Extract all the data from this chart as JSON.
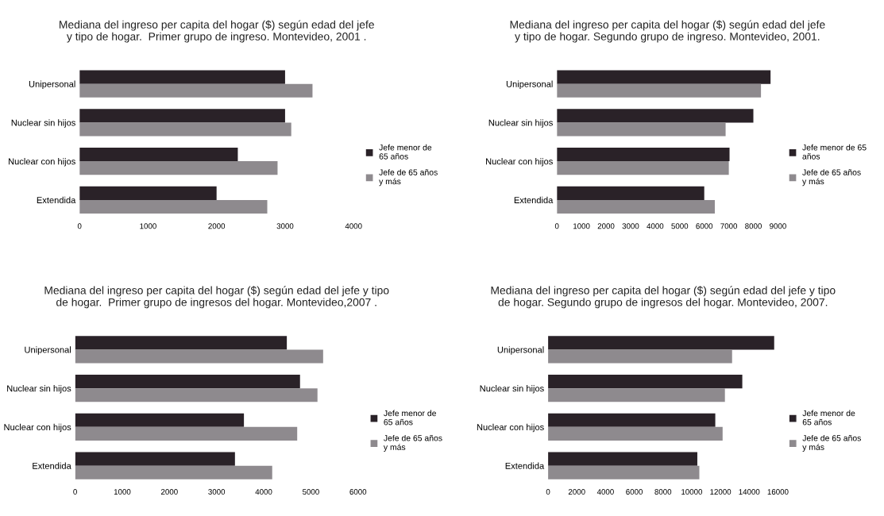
{
  "chart_data": [
    {
      "type": "bar",
      "orientation": "horizontal",
      "title": "Mediana del ingreso per capita del hogar ($) según edad del jefe\ny tipo de hogar.  Primer grupo de ingreso. Montevideo, 2001 .",
      "categories": [
        "Unipersonal",
        "Nuclear sin hijos",
        "Nuclear con hijos",
        "Extendida"
      ],
      "series": [
        {
          "name": "Jefe menor de\n65 años",
          "color": "#2a2228",
          "values": [
            3000,
            3000,
            2310,
            2000
          ]
        },
        {
          "name": "Jefe de 65 años\ny más",
          "color": "#8e8a8e",
          "values": [
            3400,
            3090,
            2890,
            2740
          ]
        }
      ],
      "xlim": [
        0,
        4000
      ],
      "xticks": [
        0,
        1000,
        2000,
        3000,
        4000
      ],
      "legend": "right",
      "grid": false
    },
    {
      "type": "bar",
      "orientation": "horizontal",
      "title": "Mediana del ingreso per capita del hogar ($) según edad del jefe\ny tipo de hogar. Segundo grupo de ingreso. Montevideo, 2001.",
      "categories": [
        "Unipersonal",
        "Nuclear sin hijos",
        "Nuclear con hijos",
        "Extendida"
      ],
      "series": [
        {
          "name": "Jefe menor de 65\naños",
          "color": "#2a2228",
          "values": [
            8700,
            8000,
            7030,
            6000
          ]
        },
        {
          "name": "Jefe de 65 años\ny más",
          "color": "#8e8a8e",
          "values": [
            8310,
            6870,
            7000,
            6430
          ]
        }
      ],
      "xlim": [
        0,
        9000
      ],
      "xticks": [
        0,
        1000,
        2000,
        3000,
        4000,
        5000,
        6000,
        7000,
        8000,
        9000
      ],
      "legend": "right",
      "grid": false
    },
    {
      "type": "bar",
      "orientation": "horizontal",
      "title": "Mediana del ingreso per capita del hogar ($) según edad del jefe y tipo\nde hogar.  Primer grupo de ingresos del hogar. Montevideo,2007 .",
      "categories": [
        "Unipersonal",
        "Nuclear sin hijos",
        "Nuclear con hijos",
        "Extendida"
      ],
      "series": [
        {
          "name": "Jefe menor de\n65 años",
          "color": "#2a2228",
          "values": [
            4490,
            4770,
            3580,
            3390
          ]
        },
        {
          "name": "Jefe de 65 años\ny más",
          "color": "#8e8a8e",
          "values": [
            5260,
            5140,
            4710,
            4180
          ]
        }
      ],
      "xlim": [
        0,
        6000
      ],
      "xticks": [
        0,
        1000,
        2000,
        3000,
        4000,
        5000,
        6000
      ],
      "legend": "right",
      "grid": false
    },
    {
      "type": "bar",
      "orientation": "horizontal",
      "title": "Mediana del ingreso per capita del hogar ($) según edad del jefe y tipo\nde hogar. Segundo grupo de ingresos del hogar. Montevideo, 2007.",
      "categories": [
        "Unipersonal",
        "Nuclear sin hijos",
        "Nuclear con hijos",
        "Extendida"
      ],
      "series": [
        {
          "name": "Jefe menor de\n65 años",
          "color": "#2a2228",
          "values": [
            15740,
            13520,
            11640,
            10390
          ]
        },
        {
          "name": "Jefe de 65 años\ny más",
          "color": "#8e8a8e",
          "values": [
            12810,
            12310,
            12150,
            10530
          ]
        }
      ],
      "xlim": [
        0,
        16000
      ],
      "xticks": [
        0,
        2000,
        4000,
        6000,
        8000,
        10000,
        12000,
        14000,
        16000
      ],
      "legend": "right",
      "grid": false
    }
  ]
}
